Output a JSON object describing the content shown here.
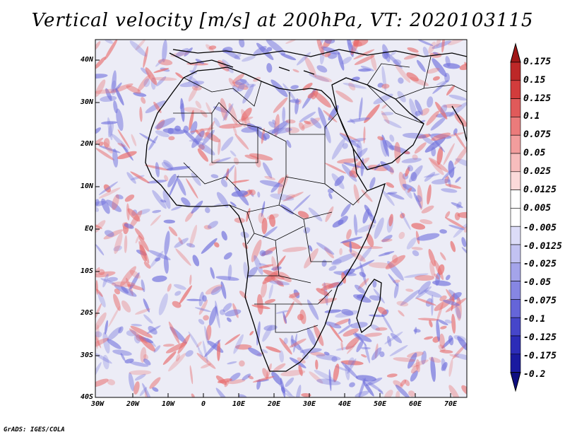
{
  "title": "Vertical velocity [m/s] at 200hPa, VT: 2020103115",
  "credit": "GrADS: IGES/COLA",
  "lat_labels": [
    "40N",
    "30N",
    "20N",
    "10N",
    "EQ",
    "10S",
    "20S",
    "30S",
    "40S"
  ],
  "lon_labels": [
    "30W",
    "20W",
    "10W",
    "0",
    "10E",
    "20E",
    "30E",
    "40E",
    "50E",
    "60E",
    "70E"
  ],
  "colorbar": {
    "labels": [
      "0.175",
      "0.15",
      "0.125",
      "0.1",
      "0.075",
      "0.05",
      "0.025",
      "0.0125",
      "0.005",
      "-0.005",
      "-0.0125",
      "-0.025",
      "-0.05",
      "-0.075",
      "-0.1",
      "-0.125",
      "-0.175",
      "-0.2"
    ],
    "colors": [
      "#a01818",
      "#bd2828",
      "#d23c3c",
      "#e05a5a",
      "#eb7b7b",
      "#f29d9d",
      "#f7bdbd",
      "#fbdada",
      "#ffffff",
      "#ffffff",
      "#dcdcf8",
      "#c2c2f2",
      "#a4a4ea",
      "#8686e2",
      "#6565d8",
      "#4646ca",
      "#2c2cb8",
      "#1a1aa0",
      "#0e0e80"
    ]
  },
  "map": {
    "extent": {
      "lon": [
        -30,
        75
      ],
      "lat": [
        -40,
        45
      ]
    },
    "pattern_colors": {
      "warm": "#e86a6a",
      "cool": "#7070dc",
      "base": "#ececf6"
    }
  }
}
